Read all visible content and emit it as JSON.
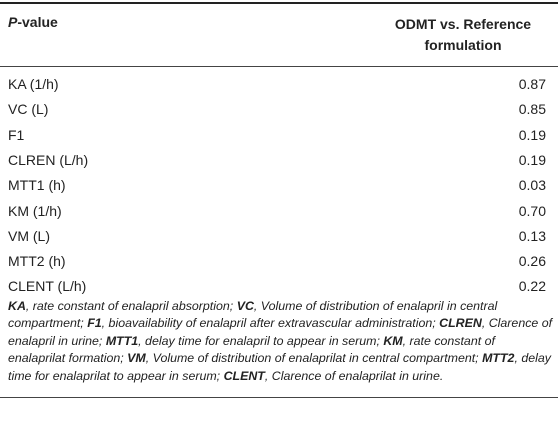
{
  "table": {
    "header": {
      "col1_italic": "P",
      "col1_rest": "-value",
      "col2_line1": "ODMT vs. Reference",
      "col2_line2": "formulation"
    },
    "rows": [
      {
        "label": "KA (1/h)",
        "value": "0.87"
      },
      {
        "label": "VC (L)",
        "value": "0.85"
      },
      {
        "label": "F1",
        "value": "0.19"
      },
      {
        "label": "CLREN (L/h)",
        "value": "0.19"
      },
      {
        "label": "MTT1 (h)",
        "value": "0.03"
      },
      {
        "label": "KM (1/h)",
        "value": "0.70"
      },
      {
        "label": "VM (L)",
        "value": "0.13"
      },
      {
        "label": "MTT2 (h)",
        "value": "0.26"
      },
      {
        "label": "CLENT (L/h)",
        "value": "0.22"
      }
    ]
  },
  "footnote": [
    {
      "term": "KA",
      "desc": ", rate constant of enalapril absorption; "
    },
    {
      "term": "VC",
      "desc": ", Volume of distribution of enalapril in central compartment; "
    },
    {
      "term": "F1",
      "desc": ", bioavailability of enalapril after extravascular administration; "
    },
    {
      "term": "CLREN",
      "desc": ", Clarence of enalapril in urine; "
    },
    {
      "term": "MTT1",
      "desc": ", delay time for enalapril to appear in serum; "
    },
    {
      "term": "KM",
      "desc": ", rate constant of enalaprilat formation; "
    },
    {
      "term": "VM",
      "desc": ", Volume of distribution of enalaprilat in central compartment; "
    },
    {
      "term": "MTT2",
      "desc": ", delay time for enalaprilat to appear in serum; "
    },
    {
      "term": "CLENT",
      "desc": ", Clarence of enalaprilat in urine."
    }
  ]
}
